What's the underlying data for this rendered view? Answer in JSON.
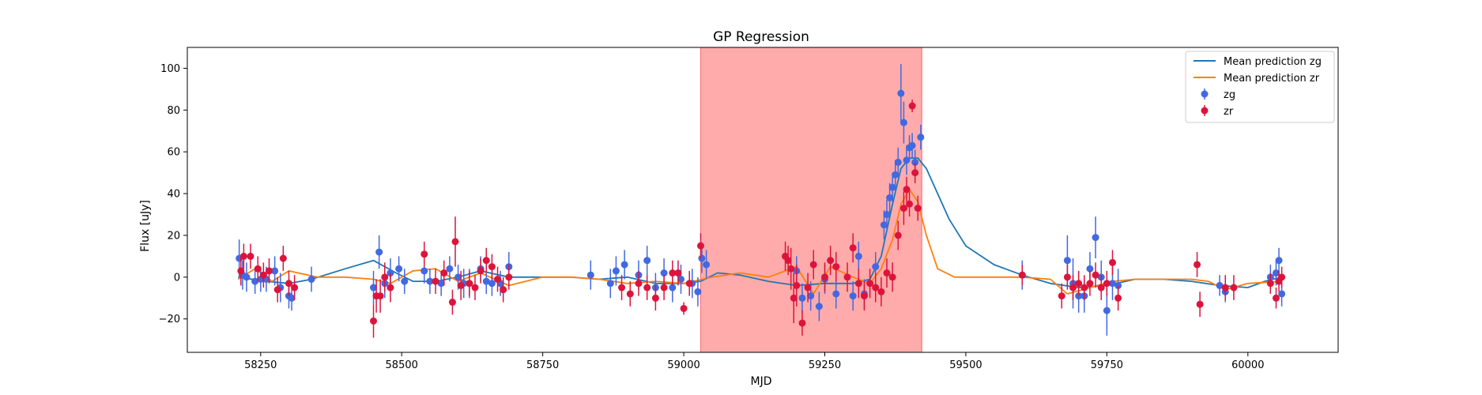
{
  "chart_data": {
    "type": "scatter",
    "title": "GP Regression",
    "xlabel": "MJD",
    "ylabel": "Flux [uJy]",
    "xlim": [
      58120,
      60160
    ],
    "ylim": [
      -36,
      110
    ],
    "xticks": [
      58250,
      58500,
      58750,
      59000,
      59250,
      59500,
      59750,
      60000
    ],
    "yticks": [
      -20,
      0,
      20,
      40,
      60,
      80,
      100
    ],
    "grid": false,
    "legend_position": "top-right",
    "shaded_region": {
      "x_start": 59030,
      "x_end": 59422,
      "color": "#ff0000",
      "opacity": 0.33
    },
    "series": [
      {
        "name": "Mean prediction zg",
        "kind": "line",
        "color": "#1f77b4",
        "x": [
          58210,
          58260,
          58300,
          58340,
          58400,
          58450,
          58490,
          58520,
          58560,
          58600,
          58640,
          58690,
          58750,
          58800,
          58850,
          58900,
          58950,
          59000,
          59030,
          59060,
          59100,
          59150,
          59200,
          59250,
          59300,
          59330,
          59350,
          59370,
          59385,
          59400,
          59415,
          59430,
          59450,
          59470,
          59500,
          59550,
          59600,
          59650,
          59700,
          59750,
          59800,
          59850,
          59900,
          59950,
          60000,
          60030,
          60060
        ],
        "y": [
          0,
          -2,
          -3,
          -1,
          4,
          8,
          2,
          -2,
          -2,
          0,
          3,
          0,
          0,
          0,
          -1,
          0,
          -3,
          -3,
          -2,
          2,
          1,
          -2,
          -4,
          -3,
          -3,
          -1,
          10,
          35,
          52,
          57,
          57,
          52,
          40,
          28,
          15,
          6,
          1,
          -3,
          -5,
          -4,
          -1,
          -1,
          -2,
          -4,
          -5,
          -2,
          0
        ]
      },
      {
        "name": "Mean prediction zr",
        "kind": "line",
        "color": "#ff7f0e",
        "x": [
          58210,
          58240,
          58270,
          58300,
          58350,
          58400,
          58450,
          58480,
          58520,
          58560,
          58600,
          58640,
          58690,
          58750,
          58800,
          58850,
          58900,
          58950,
          59000,
          59050,
          59100,
          59150,
          59200,
          59230,
          59260,
          59300,
          59330,
          59350,
          59370,
          59385,
          59400,
          59415,
          59430,
          59450,
          59480,
          59520,
          59600,
          59650,
          59680,
          59720,
          59760,
          59800,
          59850,
          59900,
          59930,
          59960,
          60000,
          60060
        ],
        "y": [
          -1,
          4,
          -2,
          3,
          0,
          0,
          -1,
          -3,
          3,
          4,
          -2,
          2,
          -4,
          0,
          0,
          -1,
          -3,
          -2,
          -3,
          0,
          2,
          0,
          5,
          -8,
          5,
          0,
          -3,
          4,
          18,
          35,
          42,
          36,
          20,
          4,
          0,
          0,
          0,
          -1,
          -8,
          -5,
          -2,
          -1,
          -1,
          -1,
          -2,
          -6,
          -3,
          -2
        ]
      },
      {
        "name": "zg",
        "kind": "errorbar",
        "color": "#4169e1",
        "x": [
          58212,
          58218,
          58225,
          58240,
          58250,
          58260,
          58275,
          58285,
          58300,
          58305,
          58340,
          58450,
          58460,
          58470,
          58480,
          58495,
          58505,
          58540,
          58550,
          58570,
          58585,
          58600,
          58610,
          58620,
          58640,
          58650,
          58660,
          58675,
          58690,
          58835,
          58870,
          58880,
          58895,
          58920,
          58935,
          58950,
          58965,
          58980,
          58995,
          59015,
          59025,
          59032,
          59040,
          59200,
          59210,
          59225,
          59240,
          59250,
          59270,
          59300,
          59310,
          59320,
          59340,
          59355,
          59360,
          59365,
          59370,
          59375,
          59380,
          59385,
          59390,
          59395,
          59400,
          59405,
          59410,
          59420,
          59600,
          59680,
          59690,
          59700,
          59710,
          59720,
          59730,
          59740,
          59750,
          59760,
          59770,
          59950,
          59960,
          60040,
          60050,
          60055,
          60060
        ],
        "y": [
          9,
          1,
          0,
          -2,
          -1,
          -1,
          3,
          -5,
          -9,
          -10,
          -1,
          -5,
          12,
          -3,
          2,
          4,
          -2,
          3,
          -2,
          -3,
          4,
          0,
          -3,
          -3,
          4,
          -2,
          -3,
          -3,
          5,
          1,
          -3,
          3,
          6,
          1,
          8,
          -5,
          2,
          -5,
          -1,
          -3,
          -7,
          9,
          6,
          3,
          -10,
          -9,
          -14,
          -1,
          -8,
          -9,
          10,
          -8,
          5,
          25,
          30,
          38,
          43,
          49,
          55,
          88,
          74,
          56,
          62,
          63,
          55,
          67,
          1,
          8,
          -3,
          -9,
          -9,
          4,
          19,
          0,
          -16,
          -3,
          -4,
          -4,
          -7,
          0,
          2,
          8,
          -8
        ],
        "yerr": [
          9,
          7,
          7,
          6,
          6,
          6,
          7,
          7,
          6,
          6,
          6,
          8,
          8,
          7,
          7,
          6,
          6,
          6,
          6,
          6,
          6,
          6,
          7,
          7,
          6,
          6,
          6,
          6,
          7,
          7,
          7,
          7,
          7,
          7,
          7,
          7,
          7,
          7,
          7,
          7,
          7,
          7,
          7,
          7,
          7,
          7,
          7,
          7,
          7,
          7,
          7,
          7,
          7,
          7,
          7,
          7,
          7,
          7,
          7,
          14,
          10,
          7,
          6,
          6,
          6,
          6,
          7,
          12,
          12,
          8,
          8,
          8,
          10,
          8,
          12,
          8,
          8,
          5,
          5,
          6,
          6,
          6,
          6
        ]
      },
      {
        "name": "zr",
        "kind": "errorbar",
        "color": "#dc143c",
        "x": [
          58215,
          58220,
          58232,
          58245,
          58255,
          58265,
          58280,
          58290,
          58300,
          58310,
          58450,
          58455,
          58462,
          58470,
          58480,
          58540,
          58560,
          58575,
          58590,
          58595,
          58605,
          58620,
          58630,
          58640,
          58650,
          58660,
          58670,
          58680,
          58690,
          58890,
          58905,
          58920,
          58935,
          58950,
          58965,
          58980,
          58990,
          59000,
          59010,
          59030,
          59180,
          59185,
          59190,
          59195,
          59200,
          59210,
          59220,
          59230,
          59250,
          59260,
          59270,
          59290,
          59300,
          59310,
          59320,
          59330,
          59340,
          59350,
          59360,
          59370,
          59380,
          59390,
          59395,
          59400,
          59405,
          59410,
          59415,
          59600,
          59670,
          59680,
          59690,
          59700,
          59710,
          59720,
          59730,
          59740,
          59750,
          59760,
          59770,
          59910,
          59915,
          59960,
          59975,
          60040,
          60050,
          60055,
          60060
        ],
        "y": [
          3,
          10,
          10,
          4,
          1,
          3,
          -6,
          9,
          -3,
          -5,
          -21,
          -9,
          -9,
          0,
          -5,
          11,
          -2,
          2,
          -12,
          17,
          -4,
          -3,
          -5,
          3,
          8,
          5,
          -1,
          -6,
          0,
          -5,
          -8,
          -3,
          -5,
          -10,
          -5,
          2,
          2,
          -15,
          -3,
          15,
          10,
          8,
          4,
          -10,
          -4,
          -22,
          -5,
          6,
          0,
          8,
          5,
          0,
          14,
          -3,
          -9,
          -3,
          -5,
          -7,
          2,
          0,
          20,
          33,
          42,
          35,
          82,
          50,
          33,
          1,
          -9,
          0,
          -5,
          -3,
          -5,
          -3,
          1,
          -5,
          -3,
          7,
          -10,
          6,
          -13,
          -5,
          -5,
          -3,
          -10,
          -2,
          0
        ],
        "yerr": [
          7,
          6,
          6,
          6,
          6,
          6,
          6,
          6,
          6,
          6,
          8,
          8,
          8,
          7,
          7,
          6,
          6,
          6,
          6,
          12,
          7,
          6,
          6,
          6,
          6,
          6,
          6,
          6,
          6,
          6,
          6,
          6,
          6,
          6,
          6,
          6,
          6,
          3,
          6,
          6,
          7,
          7,
          10,
          12,
          10,
          6,
          7,
          7,
          7,
          7,
          7,
          7,
          7,
          7,
          7,
          7,
          7,
          7,
          7,
          7,
          7,
          8,
          6,
          6,
          3,
          5,
          6,
          5,
          6,
          6,
          6,
          6,
          6,
          6,
          6,
          6,
          6,
          6,
          6,
          6,
          6,
          6,
          6,
          5,
          5,
          5,
          5
        ]
      }
    ]
  }
}
